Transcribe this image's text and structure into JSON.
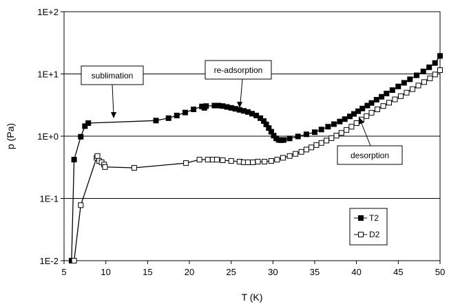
{
  "chart_data": {
    "type": "scatter",
    "xlabel": "T (K)",
    "ylabel": "p (Pa)",
    "xlim": [
      5,
      50
    ],
    "ylim": [
      0.01,
      100
    ],
    "y_scale": "log",
    "x_ticks": [
      "5",
      "10",
      "15",
      "20",
      "25",
      "30",
      "35",
      "40",
      "45",
      "50"
    ],
    "y_ticks": [
      {
        "value": 0.01,
        "label": "1E-2"
      },
      {
        "value": 0.1,
        "label": "1E-1"
      },
      {
        "value": 1,
        "label": "1E+0"
      },
      {
        "value": 10,
        "label": "1E+1"
      },
      {
        "value": 100,
        "label": "1E+2"
      }
    ],
    "grid": "horizontal major lines",
    "legend_position": "bottom-right",
    "annotations": [
      {
        "text": "sublimation",
        "point_to": [
          11.5,
          1.75
        ]
      },
      {
        "text": "re-adsorption",
        "point_to": [
          27.3,
          2.2
        ]
      },
      {
        "text": "desorption",
        "point_to": [
          41.5,
          2.3
        ]
      }
    ],
    "series": [
      {
        "name": "T2",
        "marker": "filled-square",
        "color": "#000000",
        "points": [
          [
            5.9,
            0.01
          ],
          [
            6.2,
            0.42
          ],
          [
            7.0,
            0.98
          ],
          [
            7.5,
            1.45
          ],
          [
            7.9,
            1.62
          ],
          [
            16.0,
            1.78
          ],
          [
            17.5,
            1.95
          ],
          [
            18.5,
            2.15
          ],
          [
            19.5,
            2.4
          ],
          [
            20.5,
            2.7
          ],
          [
            21.5,
            3.0
          ],
          [
            21.8,
            2.85
          ],
          [
            22.0,
            3.05
          ],
          [
            23.0,
            3.1
          ],
          [
            23.5,
            3.1
          ],
          [
            24.0,
            3.05
          ],
          [
            24.5,
            2.95
          ],
          [
            25.0,
            2.85
          ],
          [
            25.5,
            2.75
          ],
          [
            26.0,
            2.65
          ],
          [
            26.5,
            2.55
          ],
          [
            27.0,
            2.45
          ],
          [
            27.5,
            2.3
          ],
          [
            28.0,
            2.15
          ],
          [
            28.5,
            1.95
          ],
          [
            28.9,
            1.75
          ],
          [
            29.2,
            1.55
          ],
          [
            29.5,
            1.35
          ],
          [
            29.8,
            1.18
          ],
          [
            30.1,
            1.02
          ],
          [
            30.4,
            0.92
          ],
          [
            30.7,
            0.87
          ],
          [
            31.0,
            0.86
          ],
          [
            31.3,
            0.87
          ],
          [
            32.0,
            0.92
          ],
          [
            33.0,
            0.99
          ],
          [
            34.0,
            1.07
          ],
          [
            35.0,
            1.16
          ],
          [
            35.8,
            1.28
          ],
          [
            36.6,
            1.42
          ],
          [
            37.3,
            1.56
          ],
          [
            38.0,
            1.72
          ],
          [
            38.6,
            1.88
          ],
          [
            39.2,
            2.08
          ],
          [
            39.7,
            2.28
          ],
          [
            40.2,
            2.52
          ],
          [
            40.7,
            2.78
          ],
          [
            41.3,
            3.1
          ],
          [
            41.8,
            3.42
          ],
          [
            42.4,
            3.85
          ],
          [
            43.0,
            4.3
          ],
          [
            43.6,
            4.85
          ],
          [
            44.3,
            5.5
          ],
          [
            45.0,
            6.3
          ],
          [
            45.7,
            7.2
          ],
          [
            46.4,
            8.2
          ],
          [
            47.2,
            9.5
          ],
          [
            48.0,
            11.0
          ],
          [
            48.7,
            12.8
          ],
          [
            49.4,
            15.0
          ],
          [
            50.0,
            19.5
          ]
        ]
      },
      {
        "name": "D2",
        "marker": "open-square",
        "color": "#000000",
        "points": [
          [
            6.2,
            0.01
          ],
          [
            7.0,
            0.078
          ],
          [
            8.9,
            0.45
          ],
          [
            9.0,
            0.48
          ],
          [
            9.2,
            0.4
          ],
          [
            9.5,
            0.38
          ],
          [
            9.8,
            0.35
          ],
          [
            9.9,
            0.32
          ],
          [
            13.4,
            0.31
          ],
          [
            19.6,
            0.37
          ],
          [
            21.2,
            0.42
          ],
          [
            22.2,
            0.42
          ],
          [
            22.8,
            0.42
          ],
          [
            23.3,
            0.42
          ],
          [
            24.0,
            0.41
          ],
          [
            25.0,
            0.4
          ],
          [
            26.0,
            0.39
          ],
          [
            26.5,
            0.38
          ],
          [
            27.0,
            0.38
          ],
          [
            27.6,
            0.38
          ],
          [
            28.2,
            0.39
          ],
          [
            29.0,
            0.39
          ],
          [
            29.8,
            0.4
          ],
          [
            30.5,
            0.42
          ],
          [
            31.2,
            0.45
          ],
          [
            32.0,
            0.48
          ],
          [
            32.7,
            0.52
          ],
          [
            33.4,
            0.56
          ],
          [
            34.0,
            0.61
          ],
          [
            34.6,
            0.66
          ],
          [
            35.2,
            0.72
          ],
          [
            35.8,
            0.78
          ],
          [
            36.4,
            0.85
          ],
          [
            37.0,
            0.93
          ],
          [
            37.6,
            1.02
          ],
          [
            38.2,
            1.13
          ],
          [
            38.8,
            1.26
          ],
          [
            39.4,
            1.42
          ],
          [
            40.0,
            1.62
          ],
          [
            40.6,
            1.85
          ],
          [
            41.2,
            2.1
          ],
          [
            41.8,
            2.38
          ],
          [
            42.5,
            2.7
          ],
          [
            43.2,
            3.05
          ],
          [
            43.9,
            3.45
          ],
          [
            44.6,
            3.9
          ],
          [
            45.3,
            4.4
          ],
          [
            46.0,
            5.0
          ],
          [
            46.7,
            5.7
          ],
          [
            47.4,
            6.5
          ],
          [
            48.1,
            7.4
          ],
          [
            48.8,
            8.5
          ],
          [
            49.4,
            9.8
          ],
          [
            50.0,
            11.5
          ]
        ]
      }
    ]
  }
}
